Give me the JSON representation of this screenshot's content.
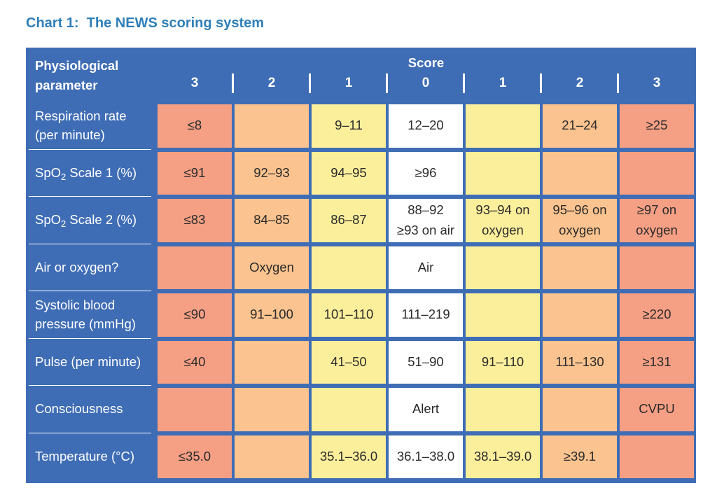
{
  "title": "Chart 1:  The NEWS scoring system",
  "header": {
    "param_line1": "Physiological",
    "param_line2": "parameter",
    "score_title": "Score",
    "scores": [
      "3",
      "2",
      "1",
      "0",
      "1",
      "2",
      "3"
    ]
  },
  "colors": {
    "header_blue": "#3f6db5",
    "title_blue": "#2f7fb8",
    "score_3": "#f59f84",
    "score_2": "#fbc38f",
    "score_1": "#fcef9c",
    "score_0": "#ffffff"
  },
  "rows": [
    {
      "label_line1": "Respiration rate",
      "label_line2": "(per minute)",
      "cells": [
        "≤8",
        "",
        "9–11",
        "12–20",
        "",
        "21–24",
        "≥25"
      ]
    },
    {
      "label_prefix": "SpO",
      "label_sub": "2",
      "label_suffix": " Scale 1 (%)",
      "cells": [
        "≤91",
        "92–93",
        "94–95",
        "≥96",
        "",
        "",
        ""
      ]
    },
    {
      "label_prefix": "SpO",
      "label_sub": "2",
      "label_suffix": " Scale 2 (%)",
      "cells": [
        "≤83",
        "84–85",
        "86–87",
        "88–92\n≥93 on air",
        "93–94 on\noxygen",
        "95–96 on\noxygen",
        "≥97 on\noxygen"
      ]
    },
    {
      "label_line1": "Air or oxygen?",
      "cells": [
        "",
        "Oxygen",
        "",
        "Air",
        "",
        "",
        ""
      ]
    },
    {
      "label_line1": "Systolic blood",
      "label_line2": "pressure (mmHg)",
      "cells": [
        "≤90",
        "91–100",
        "101–110",
        "111–219",
        "",
        "",
        "≥220"
      ]
    },
    {
      "label_line1": "Pulse (per minute)",
      "cells": [
        "≤40",
        "",
        "41–50",
        "51–90",
        "91–110",
        "111–130",
        "≥131"
      ]
    },
    {
      "label_line1": "Consciousness",
      "cells": [
        "",
        "",
        "",
        "Alert",
        "",
        "",
        "CVPU"
      ]
    },
    {
      "label_line1": "Temperature (°C)",
      "cells": [
        "≤35.0",
        "",
        "35.1–36.0",
        "36.1–38.0",
        "38.1–39.0",
        "≥39.1",
        ""
      ]
    }
  ]
}
